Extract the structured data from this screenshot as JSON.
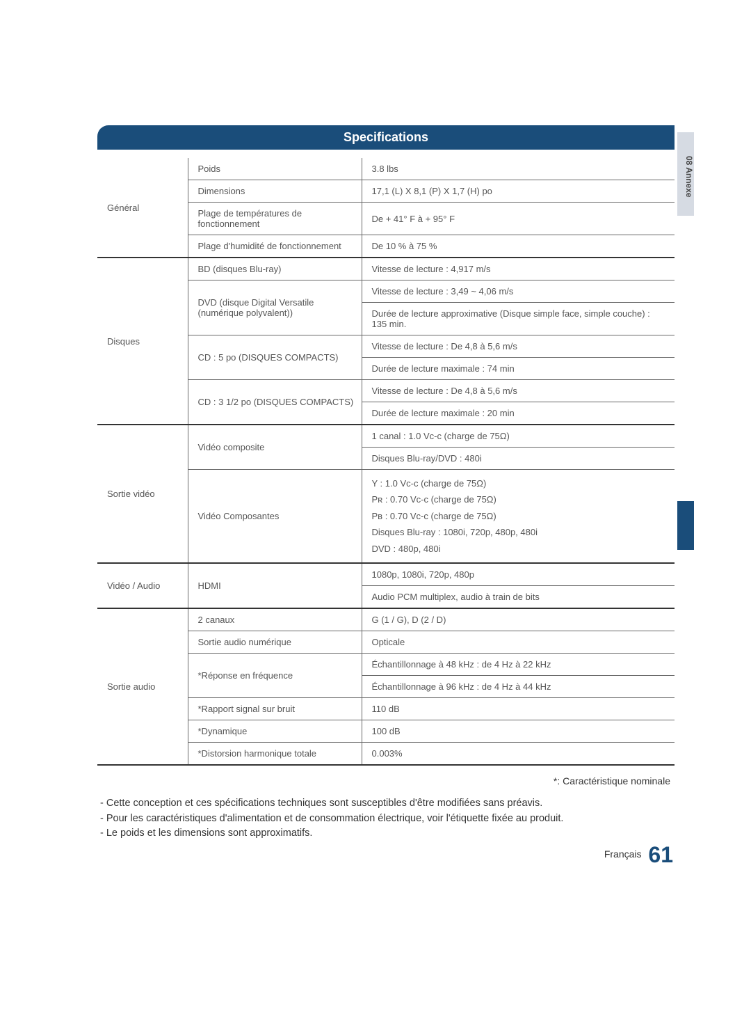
{
  "section_title": "Specifications",
  "side_tab": "08  Annexe",
  "table": {
    "general": {
      "cat": "Général",
      "rows": [
        {
          "label": "Poids",
          "value": "3.8 lbs"
        },
        {
          "label": "Dimensions",
          "value": "17,1 (L) X 8,1 (P) X 1,7 (H) po"
        },
        {
          "label": "Plage de températures de fonctionnement",
          "value": "De + 41° F à + 95° F"
        },
        {
          "label": "Plage d'humidité de fonctionnement",
          "value": "De 10 % à 75 %"
        }
      ]
    },
    "disques": {
      "cat": "Disques",
      "rows": [
        {
          "label": "BD (disques Blu-ray)",
          "value": "Vitesse de lecture : 4,917 m/s"
        },
        {
          "label": "DVD (disque Digital Versatile (numérique polyvalent))",
          "value1": "Vitesse de lecture : 3,49 ~ 4,06 m/s",
          "value2": "Durée de lecture approximative (Disque simple face, simple couche) : 135 min."
        },
        {
          "label": "CD : 5 po (DISQUES COMPACTS)",
          "value1": "Vitesse de lecture : De 4,8 à 5,6 m/s",
          "value2": "Durée de lecture maximale : 74 min"
        },
        {
          "label": "CD : 3 1/2 po (DISQUES COMPACTS)",
          "value1": "Vitesse de lecture : De 4,8 à 5,6 m/s",
          "value2": "Durée de lecture maximale : 20 min"
        }
      ]
    },
    "sortie_video": {
      "cat": "Sortie vidéo",
      "rows": [
        {
          "label": "Vidéo composite",
          "value1": "1 canal : 1.0 Vc-c (charge de 75Ω)",
          "value2": "Disques Blu-ray/DVD : 480i"
        },
        {
          "label": "Vidéo Composantes",
          "value_lines": [
            "Y : 1.0 Vc-c (charge de 75Ω)",
            "Pʀ : 0.70 Vc-c (charge de 75Ω)",
            "Pʙ : 0.70 Vc-c (charge de 75Ω)",
            "Disques Blu-ray : 1080i, 720p, 480p, 480i",
            "DVD : 480p, 480i"
          ]
        }
      ]
    },
    "video_audio": {
      "cat": "Vidéo / Audio",
      "rows": [
        {
          "label": "HDMI",
          "value1": "1080p, 1080i, 720p, 480p",
          "value2": "Audio PCM multiplex, audio à train de bits"
        }
      ]
    },
    "sortie_audio": {
      "cat": "Sortie audio",
      "rows": [
        {
          "label": "2 canaux",
          "value": "G (1 / G), D (2 / D)"
        },
        {
          "label": "Sortie audio numérique",
          "value": "Opticale"
        },
        {
          "label": "*Réponse en fréquence",
          "value1": "Échantillonnage à 48 kHz : de 4 Hz à 22 kHz",
          "value2": "Échantillonnage à 96 kHz : de 4 Hz à 44 kHz"
        },
        {
          "label": "*Rapport signal sur bruit",
          "value": "110 dB"
        },
        {
          "label": "*Dynamique",
          "value": "100 dB"
        },
        {
          "label": "*Distorsion harmonique totale",
          "value": "0.003%"
        }
      ]
    }
  },
  "note_nominal": "*: Caractéristique nominale",
  "notes": [
    "- Cette conception et ces spécifications techniques sont susceptibles d'être modifiées sans préavis.",
    "- Pour les caractéristiques d'alimentation et de consommation électrique, voir l'étiquette fixée au produit.",
    "- Le poids et les dimensions sont approximatifs."
  ],
  "footer": {
    "lang": "Français",
    "page": "61"
  },
  "colors": {
    "header_bg": "#1a4d7a",
    "header_fg": "#ffffff",
    "border": "#666666",
    "thick_border": "#333333",
    "text": "#555555",
    "side_tab_bg": "#d6dbe3",
    "page_num": "#1a4d7a"
  }
}
